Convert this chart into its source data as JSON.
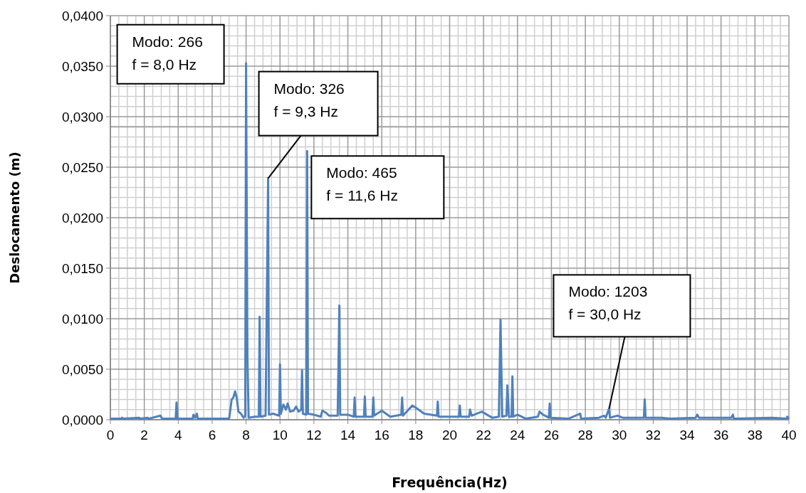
{
  "chart_data": {
    "type": "line",
    "xlabel": "Frequência(Hz)",
    "ylabel": "Deslocamento (m)",
    "xlim": [
      0,
      40
    ],
    "xticks": [
      0,
      2,
      4,
      6,
      8,
      10,
      12,
      14,
      16,
      18,
      20,
      22,
      24,
      26,
      28,
      30,
      32,
      34,
      36,
      38,
      40
    ],
    "ylim": [
      0,
      0.04
    ],
    "yticks": [
      {
        "value": 0,
        "label": "0,0000"
      },
      {
        "value": 0.005,
        "label": "0,0050"
      },
      {
        "value": 0.01,
        "label": "0,0100"
      },
      {
        "value": 0.015,
        "label": "0,0150"
      },
      {
        "value": 0.02,
        "label": "0,0200"
      },
      {
        "value": 0.025,
        "label": "0,0250"
      },
      {
        "value": 0.03,
        "label": "0,0300"
      },
      {
        "value": 0.035,
        "label": "0,0350"
      },
      {
        "value": 0.04,
        "label": "0,0400"
      }
    ],
    "grid": true,
    "marker": "none",
    "line_style": "solid",
    "ref_lines": [
      {
        "axis": "y",
        "value": 0.029,
        "color": "#a6a6a6"
      }
    ],
    "annotations": [
      {
        "text": "Modo: 266\nf = 8,0 Hz",
        "x": 8.0,
        "y": 0.0353
      },
      {
        "text": "Modo: 326\nf = 9,3 Hz",
        "x": 9.3,
        "y": 0.0239
      },
      {
        "text": "Modo: 465\nf = 11,6 Hz",
        "x": 11.6,
        "y": 0.0266
      },
      {
        "text": "Modo: 1203\nf = 30,0 Hz",
        "x": 29.4,
        "y": 0.0011
      }
    ],
    "series": [
      {
        "color": "#4f81bd",
        "x": [
          0,
          0.65,
          0.7,
          0.75,
          1.7,
          1.75,
          2.2,
          2.25,
          2.95,
          3.05,
          3.85,
          3.9,
          3.95,
          4.85,
          4.9,
          5.0,
          5.1,
          5.15,
          6.5,
          7.0,
          7.05,
          7.15,
          7.25,
          7.35,
          7.45,
          7.55,
          7.7,
          7.85,
          7.95,
          8.0,
          8.08,
          8.15,
          8.5,
          8.75,
          8.8,
          8.85,
          9.15,
          9.3,
          9.35,
          9.6,
          9.95,
          10.0,
          10.05,
          10.2,
          10.35,
          10.45,
          10.6,
          10.8,
          10.95,
          11.1,
          11.25,
          11.3,
          11.35,
          11.55,
          11.6,
          11.65,
          12.0,
          12.4,
          12.5,
          12.7,
          12.9,
          13.4,
          13.5,
          13.55,
          14.0,
          14.35,
          14.4,
          14.45,
          14.95,
          15.0,
          15.05,
          15.45,
          15.5,
          15.55,
          16.0,
          16.5,
          17.15,
          17.2,
          17.25,
          17.8,
          18.0,
          18.5,
          19.25,
          19.3,
          19.35,
          20.0,
          20.55,
          20.6,
          20.65,
          21.15,
          21.2,
          21.3,
          21.9,
          22.5,
          22.9,
          23.0,
          23.1,
          23.35,
          23.4,
          23.5,
          23.65,
          23.7,
          23.75,
          24.0,
          24.5,
          25.2,
          25.3,
          25.5,
          25.85,
          25.9,
          25.95,
          27.0,
          27.7,
          27.75,
          28.8,
          29.1,
          29.2,
          29.4,
          29.45,
          29.9,
          30.2,
          31.45,
          31.5,
          31.55,
          32.5,
          33.0,
          34.5,
          34.6,
          34.7,
          36.6,
          36.7,
          36.75,
          39.0,
          39.85,
          39.9,
          40
        ],
        "values": [
          0.0001,
          0.0001,
          0.0002,
          0.0001,
          0.0002,
          0.0001,
          0.0002,
          0.0001,
          0.0004,
          0.0001,
          0.0001,
          0.0017,
          0.0001,
          0.0001,
          0.0005,
          0.0002,
          0.0006,
          0.0001,
          0.0001,
          0.0001,
          0.0007,
          0.002,
          0.0022,
          0.0028,
          0.0022,
          0.0008,
          0.0006,
          0.0002,
          0.0004,
          0.0353,
          0.0062,
          0.0002,
          0.0003,
          0.0003,
          0.0102,
          0.0003,
          0.0004,
          0.0239,
          0.0005,
          0.0006,
          0.0004,
          0.0055,
          0.0006,
          0.0015,
          0.001,
          0.0016,
          0.0008,
          0.0009,
          0.0013,
          0.0008,
          0.001,
          0.0049,
          0.0006,
          0.0005,
          0.0266,
          0.0006,
          0.0005,
          0.0003,
          0.0009,
          0.0007,
          0.0004,
          0.0004,
          0.0113,
          0.0005,
          0.0005,
          0.0003,
          0.0022,
          0.0003,
          0.0003,
          0.0023,
          0.0003,
          0.0003,
          0.0022,
          0.0004,
          0.0009,
          0.0003,
          0.0005,
          0.0022,
          0.0004,
          0.0014,
          0.0012,
          0.0006,
          0.0004,
          0.0018,
          0.0003,
          0.0003,
          0.0003,
          0.0014,
          0.0003,
          0.0003,
          0.001,
          0.0004,
          0.0008,
          0.0002,
          0.0003,
          0.0099,
          0.0003,
          0.0004,
          0.0034,
          0.0003,
          0.0003,
          0.0043,
          0.0003,
          0.0005,
          0.0001,
          0.0003,
          0.0008,
          0.0005,
          0.0002,
          0.0016,
          0.0002,
          0.0001,
          0.0006,
          0.0001,
          0.0002,
          0.0004,
          0.0002,
          0.0011,
          0.0002,
          0.0004,
          0.0002,
          0.0002,
          0.002,
          0.0002,
          0.0002,
          0.0001,
          0.0002,
          0.0005,
          0.0002,
          0.0002,
          0.0005,
          0.0001,
          0.0002,
          0.0001,
          0.0003,
          0.0001
        ]
      }
    ]
  }
}
